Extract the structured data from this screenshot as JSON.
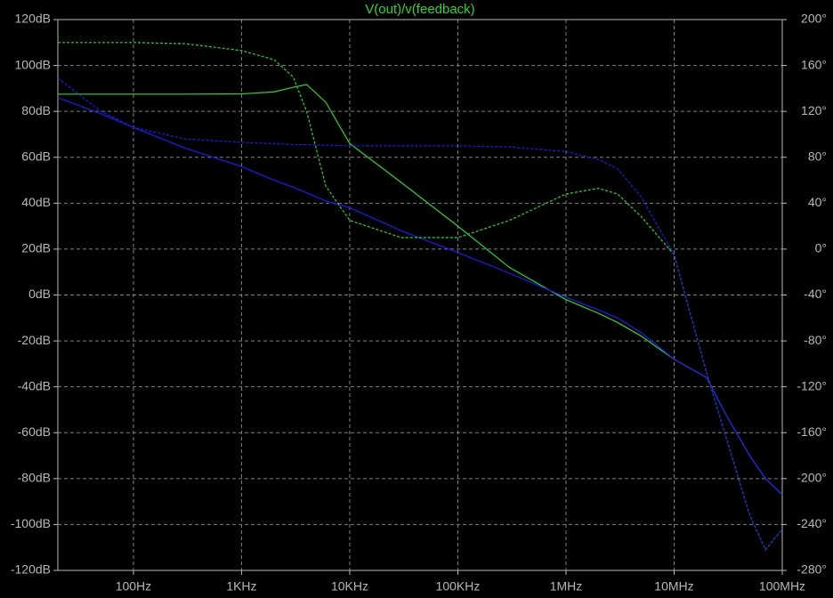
{
  "chart_data": {
    "type": "line",
    "x": [
      20,
      50,
      100,
      300,
      1000,
      2000,
      3000,
      4000,
      6000,
      10000,
      30000,
      100000,
      300000,
      1000000,
      2000000,
      3000000,
      5000000,
      10000000,
      20000000,
      30000000,
      50000000,
      70000000,
      100000000
    ],
    "xscale": "log",
    "xlim": [
      20,
      100000000
    ],
    "xticks": [
      {
        "value": 100,
        "label": "100Hz"
      },
      {
        "value": 1000,
        "label": "1KHz"
      },
      {
        "value": 10000,
        "label": "10KHz"
      },
      {
        "value": 100000,
        "label": "100KHz"
      },
      {
        "value": 1000000,
        "label": "1MHz"
      },
      {
        "value": 10000000,
        "label": "10MHz"
      },
      {
        "value": 100000000,
        "label": "100MHz"
      }
    ],
    "ylim": [
      -120,
      120
    ],
    "yticks": [
      {
        "value": 120,
        "label": "120dB"
      },
      {
        "value": 100,
        "label": "100dB"
      },
      {
        "value": 80,
        "label": "80dB"
      },
      {
        "value": 60,
        "label": "60dB"
      },
      {
        "value": 40,
        "label": "40dB"
      },
      {
        "value": 20,
        "label": "20dB"
      },
      {
        "value": 0,
        "label": "0dB"
      },
      {
        "value": -20,
        "label": "-20dB"
      },
      {
        "value": -40,
        "label": "-40dB"
      },
      {
        "value": -60,
        "label": "-60dB"
      },
      {
        "value": -80,
        "label": "-80dB"
      },
      {
        "value": -100,
        "label": "-100dB"
      },
      {
        "value": -120,
        "label": "-120dB"
      }
    ],
    "y2lim": [
      -280,
      200
    ],
    "y2ticks": [
      {
        "value": 200,
        "label": "200°"
      },
      {
        "value": 160,
        "label": "160°"
      },
      {
        "value": 120,
        "label": "120°"
      },
      {
        "value": 80,
        "label": "80°"
      },
      {
        "value": 40,
        "label": "40°"
      },
      {
        "value": 0,
        "label": "0°"
      },
      {
        "value": -40,
        "label": "-40°"
      },
      {
        "value": -80,
        "label": "-80°"
      },
      {
        "value": -120,
        "label": "-120°"
      },
      {
        "value": -160,
        "label": "-160°"
      },
      {
        "value": -200,
        "label": "-200°"
      },
      {
        "value": -240,
        "label": "-240°"
      },
      {
        "value": -280,
        "label": "-280°"
      }
    ],
    "grid": true,
    "series": [
      {
        "name": "V(out)/v(feedback)",
        "color": "#22dd22",
        "style": "solid",
        "values": [
          87.5,
          87.5,
          87.5,
          87.5,
          87.6,
          88.5,
          90.5,
          91.7,
          84,
          66,
          49,
          30,
          12,
          -2,
          -8,
          -12,
          -18,
          -28,
          -36,
          -52,
          -70,
          -80,
          -87
        ]
      },
      {
        "color": "#1a1aff",
        "style": "solid",
        "values": [
          86,
          79,
          73,
          64,
          56,
          50,
          47,
          44.5,
          41,
          38,
          28,
          18.5,
          9.5,
          -1,
          -6.5,
          -10,
          -16.5,
          -28,
          -36,
          -52,
          -70,
          -80,
          -87
        ]
      },
      {
        "color": "#22dd22",
        "style": "dashed",
        "axis": "y2",
        "values": [
          180,
          180,
          180,
          179,
          173,
          165,
          150,
          120,
          55,
          25,
          10,
          10,
          25,
          48,
          53,
          48,
          28,
          -5,
          -108,
          -163,
          -232,
          -262,
          -244
        ]
      },
      {
        "color": "#1a1aff",
        "style": "dashed",
        "axis": "y2",
        "values": [
          149,
          120,
          106,
          96,
          93,
          92,
          91,
          91,
          90.5,
          90,
          90,
          90,
          89,
          85,
          78,
          70,
          45,
          -5,
          -108,
          -163,
          -232,
          -262,
          -244
        ]
      }
    ]
  }
}
